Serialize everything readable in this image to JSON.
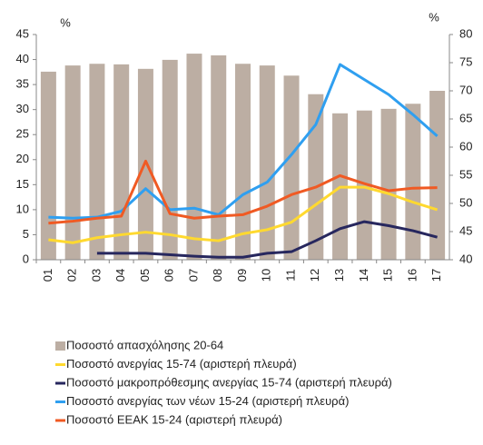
{
  "chart_data": {
    "type": "bar",
    "y_unit": "%",
    "y2_unit": "%",
    "categories": [
      "01",
      "02",
      "03",
      "04",
      "05",
      "06",
      "07",
      "08",
      "09",
      "10",
      "11",
      "12",
      "13",
      "14",
      "15",
      "16",
      "17"
    ],
    "ylim": [
      0,
      45
    ],
    "yticks": [
      0,
      5,
      10,
      15,
      20,
      25,
      30,
      35,
      40,
      45
    ],
    "y2lim": [
      40,
      80
    ],
    "y2ticks": [
      40,
      45,
      50,
      55,
      60,
      65,
      70,
      75,
      80
    ],
    "series": [
      {
        "name": "Ποσοστό απασχόλησης 20-64",
        "type": "bar",
        "axis": "y2",
        "color": "#bcaea3",
        "values": [
          73.4,
          74.5,
          74.8,
          74.7,
          73.9,
          75.5,
          76.6,
          76.3,
          74.8,
          74.5,
          72.7,
          69.4,
          66.0,
          66.5,
          66.8,
          67.7,
          70.0
        ]
      },
      {
        "name": "Ποσοστό ανεργίας 15-74 (αριστερή πλευρά)",
        "type": "line",
        "color": "#ffd92f",
        "values": [
          4.0,
          3.4,
          4.4,
          5.0,
          5.5,
          5.0,
          4.2,
          3.8,
          5.2,
          6.0,
          7.5,
          11.0,
          14.5,
          14.5,
          13.2,
          11.5,
          10.0
        ]
      },
      {
        "name": "Ποσοστό μακροπρόθεσμης ανεργίας 15-74 (αριστερή πλευρά)",
        "type": "line",
        "color": "#27275e",
        "values": [
          null,
          null,
          1.3,
          1.3,
          1.3,
          1.0,
          0.7,
          0.5,
          0.5,
          1.3,
          1.6,
          3.8,
          6.2,
          7.6,
          6.8,
          5.8,
          4.5
        ]
      },
      {
        "name": "Ποσοστό ανεργίας των νέων 15-24 (αριστερή πλευρά)",
        "type": "line",
        "color": "#2f9ff0",
        "values": [
          8.5,
          8.3,
          8.5,
          9.7,
          14.2,
          10.0,
          10.3,
          9.0,
          13.0,
          15.5,
          21.0,
          27.0,
          39.0,
          36.0,
          33.0,
          29.0,
          24.7
        ]
      },
      {
        "name": "Ποσοστό ΕΕΑΚ 15-24 (αριστερή πλευρά)",
        "type": "line",
        "color": "#f05a23",
        "values": [
          7.3,
          7.7,
          8.3,
          8.7,
          19.7,
          9.2,
          8.3,
          8.7,
          9.0,
          10.7,
          13.0,
          14.5,
          16.8,
          15.2,
          13.8,
          14.3,
          14.4
        ]
      }
    ]
  }
}
